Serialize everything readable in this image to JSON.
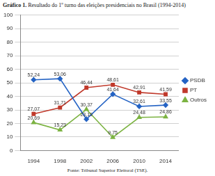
{
  "chart_data": {
    "type": "line",
    "title": "Gráfico 1. Resultado do 1º turno das eleições presidenciais no Brasil (1994-2014)",
    "source": "Fonte: Tribunal Superior Eleitoral (TSE).",
    "categories": [
      "1994",
      "1998",
      "2002",
      "2006",
      "2010",
      "2014"
    ],
    "series": [
      {
        "name": "PSDB",
        "color": "#2463c4",
        "marker": "diamond",
        "values": [
          52.24,
          53.06,
          23.19,
          41.64,
          32.61,
          33.55
        ],
        "value_labels": [
          "52,24",
          "53,06",
          "23,19",
          "41,64",
          "32,61",
          "33,55"
        ]
      },
      {
        "name": "PT",
        "color": "#c0392b",
        "marker": "square",
        "values": [
          27.07,
          31.71,
          46.44,
          48.61,
          42.91,
          41.59
        ],
        "value_labels": [
          "27,07",
          "31,71",
          "46,44",
          "48,61",
          "42,91",
          "41,59"
        ]
      },
      {
        "name": "Outros",
        "color": "#7cb342",
        "marker": "triangle",
        "values": [
          20.69,
          15.23,
          30.37,
          9.75,
          24.48,
          24.86
        ],
        "value_labels": [
          "20,69",
          "15,23",
          "30,37",
          "9,75",
          "24,48",
          "24,86"
        ]
      }
    ],
    "ylim": [
      0,
      100
    ],
    "yticks": [
      0,
      10,
      20,
      30,
      40,
      50,
      60,
      70,
      80,
      90,
      100
    ],
    "grid": true,
    "legend": "right",
    "data_labels": true
  }
}
